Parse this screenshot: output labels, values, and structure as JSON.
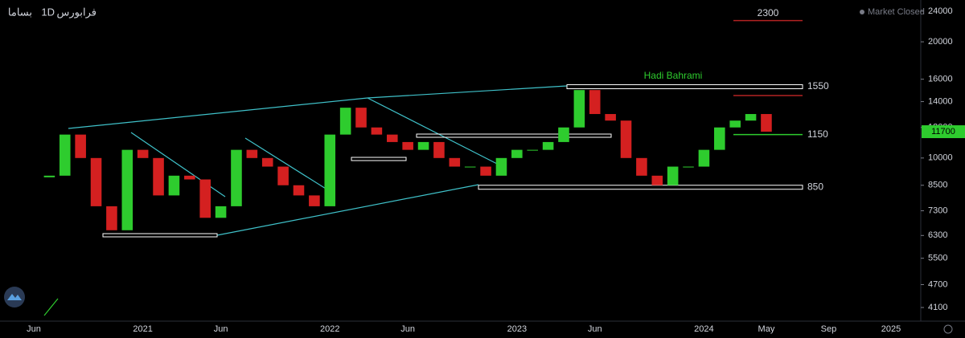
{
  "header": {
    "symbol": "بساما",
    "interval": "1D",
    "exchange": "فرابورس"
  },
  "status": "Market Closed",
  "author": "Hadi Bahrami",
  "chart_data": {
    "type": "candlestick",
    "log_scale": true,
    "up_color": "#2ecc2e",
    "down_color": "#d42020",
    "categories": [
      "Jun",
      null,
      null,
      null,
      null,
      null,
      null,
      "2021",
      null,
      null,
      null,
      null,
      "Jun",
      null,
      null,
      null,
      null,
      null,
      null,
      "2022",
      null,
      null,
      null,
      null,
      "Jun",
      null,
      null,
      null,
      null,
      null,
      null,
      "2023",
      null,
      null,
      null,
      null,
      "Jun",
      null,
      null,
      null,
      null,
      null,
      null,
      "2024",
      null,
      null,
      null,
      "May",
      null,
      null,
      null,
      "Sep",
      null,
      null,
      null,
      "2025"
    ],
    "values": [
      null,
      9000,
      11500,
      10000,
      7500,
      6500,
      10500,
      10000,
      8000,
      9000,
      8800,
      7000,
      7500,
      10500,
      10000,
      9500,
      8500,
      8000,
      7500,
      11500,
      13500,
      12000,
      11500,
      11000,
      10500,
      11000,
      10000,
      9500,
      9500,
      9000,
      10000,
      10500,
      10500,
      11000,
      12000,
      15000,
      13000,
      12500,
      10000,
      9000,
      8500,
      9500,
      9500,
      10500,
      12000,
      12500,
      13000,
      11700,
      null,
      null,
      null,
      null,
      null,
      null,
      null,
      null
    ],
    "ylim": [
      4100,
      24000
    ],
    "yticks": [
      4100,
      4700,
      5500,
      6300,
      7300,
      8500,
      10000,
      12000,
      14000,
      16000,
      20000,
      24000
    ],
    "last_price": 11700,
    "last_price_color": "#2ecc2e",
    "levels": [
      {
        "label": "2300",
        "price": 22700,
        "color": "#b22222"
      },
      {
        "label": "1550",
        "price": 15300,
        "color": "#ffffff"
      },
      {
        "label": "1150",
        "price": 11500,
        "color": "#2ecc2e"
      },
      {
        "label": "850",
        "price": 8400,
        "color": "#ffffff"
      }
    ]
  }
}
